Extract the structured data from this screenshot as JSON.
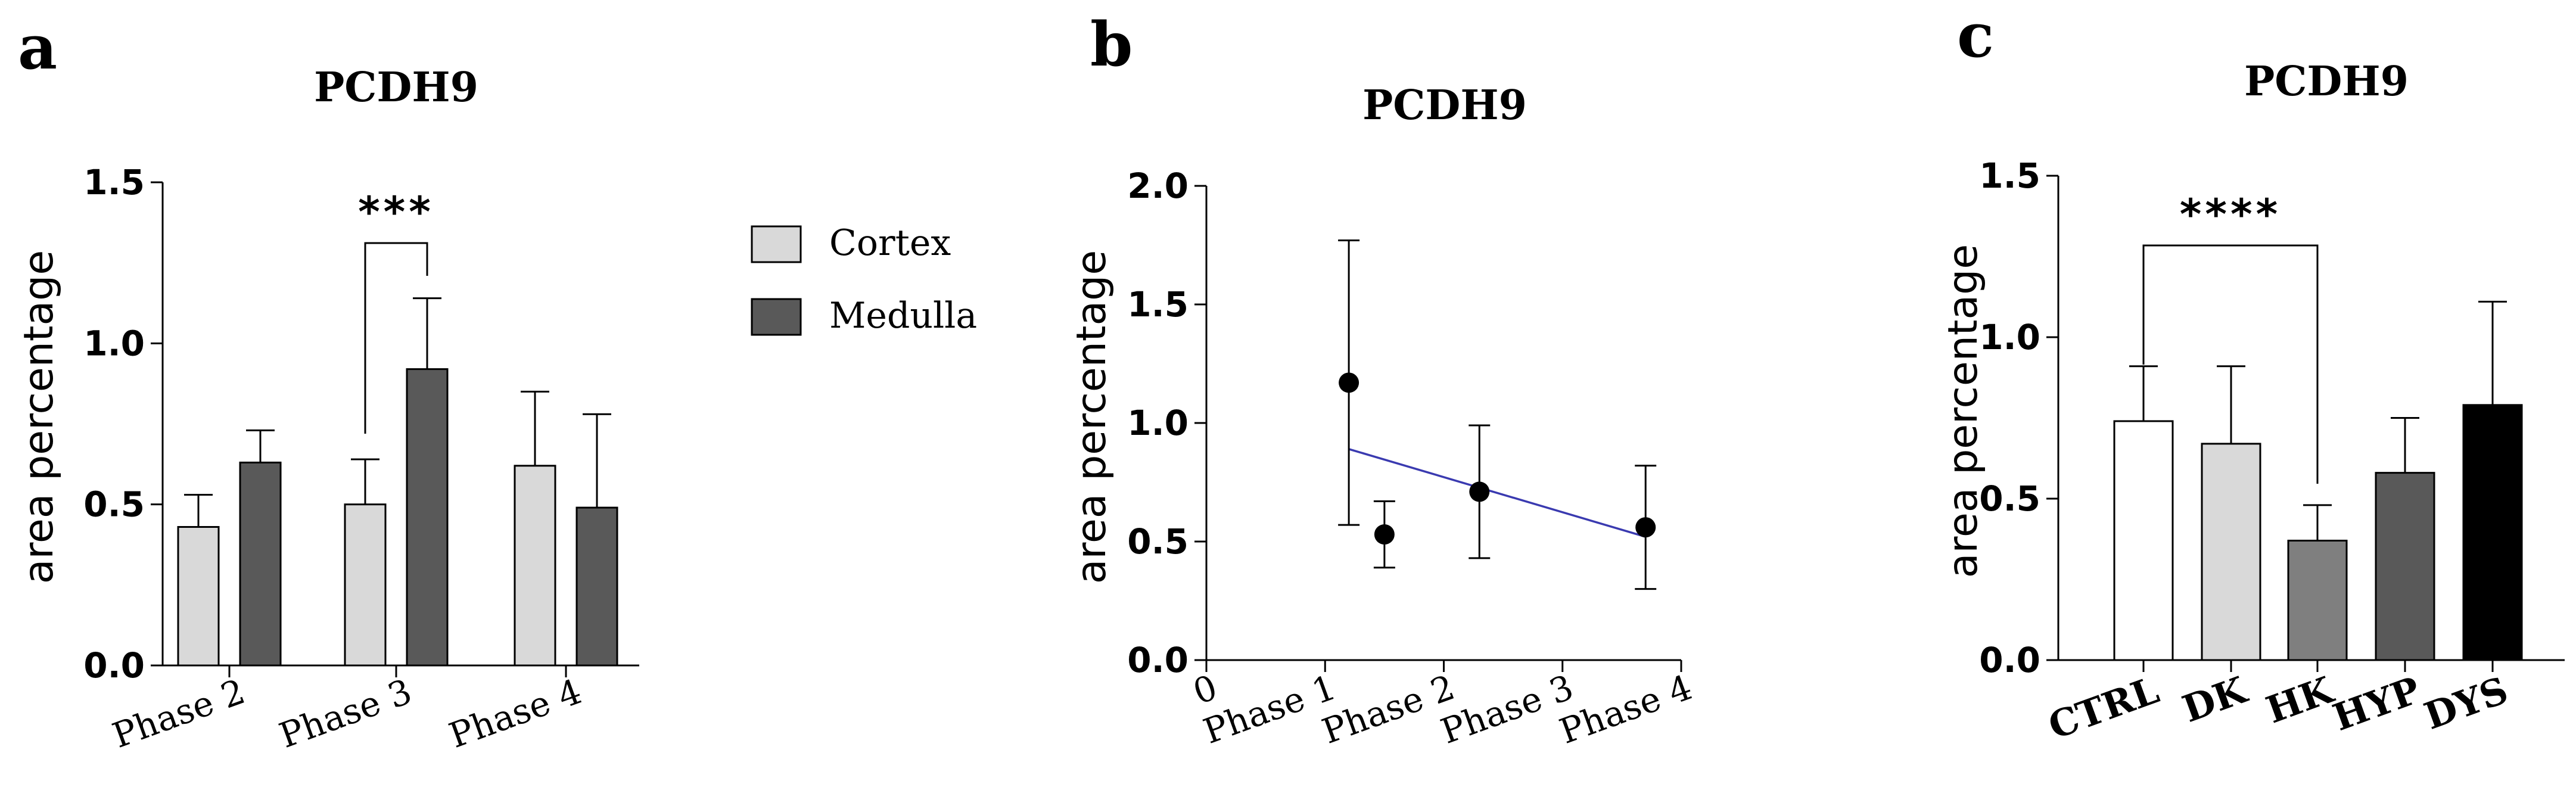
{
  "chart_data": [
    {
      "panel": "a",
      "type": "bar",
      "title": "PCDH9",
      "ylabel": "area percentage",
      "xlabel": "",
      "ylim": [
        0,
        1.5
      ],
      "yticks": [
        "0.0",
        "0.5",
        "1.0",
        "1.5"
      ],
      "categories": [
        "Phase 2",
        "Phase 3",
        "Phase 4"
      ],
      "series": [
        {
          "name": "Cortex",
          "color": "#d9d9d9",
          "values": [
            0.43,
            0.5,
            0.62
          ],
          "errors": [
            0.1,
            0.14,
            0.23
          ]
        },
        {
          "name": "Medulla",
          "color": "#595959",
          "values": [
            0.63,
            0.92,
            0.49
          ],
          "errors": [
            0.1,
            0.22,
            0.29
          ]
        }
      ],
      "significance": [
        {
          "from": "Phase 3 Cortex",
          "to": "Phase 3 Medulla",
          "label": "***"
        }
      ],
      "legend": {
        "placement": "right",
        "entries": [
          "Cortex",
          "Medulla"
        ]
      }
    },
    {
      "panel": "b",
      "type": "scatter",
      "title": "PCDH9",
      "ylabel": "area percentage",
      "ylim": [
        0,
        2.0
      ],
      "yticks": [
        "0.0",
        "0.5",
        "1.0",
        "1.5",
        "2.0"
      ],
      "xticks": [
        "0",
        "Phase 1",
        "Phase 2",
        "Phase 3",
        "Phase 4"
      ],
      "xlim": [
        0,
        4
      ],
      "points": [
        {
          "x": 1.2,
          "y": 1.17,
          "err": 0.6
        },
        {
          "x": 1.5,
          "y": 0.53,
          "err": 0.14
        },
        {
          "x": 2.3,
          "y": 0.71,
          "err": 0.28
        },
        {
          "x": 3.7,
          "y": 0.56,
          "err": 0.26
        }
      ],
      "regression": {
        "x": [
          1.2,
          3.7
        ],
        "y": [
          0.89,
          0.52
        ],
        "color": "#3a3ab0"
      }
    },
    {
      "panel": "c",
      "type": "bar",
      "title": "PCDH9",
      "ylabel": "area percentage",
      "ylim": [
        0,
        1.5
      ],
      "yticks": [
        "0.0",
        "0.5",
        "1.0",
        "1.5"
      ],
      "categories": [
        "CTRL",
        "DK",
        "HK",
        "HYP",
        "DYS"
      ],
      "values": [
        0.74,
        0.67,
        0.37,
        0.58,
        0.79
      ],
      "errors": [
        0.17,
        0.24,
        0.11,
        0.17,
        0.32
      ],
      "colors": [
        "#ffffff",
        "#d9d9d9",
        "#7f7f7f",
        "#595959",
        "#000000"
      ],
      "significance": [
        {
          "from": "CTRL",
          "to": "HK",
          "label": "****"
        }
      ]
    }
  ]
}
